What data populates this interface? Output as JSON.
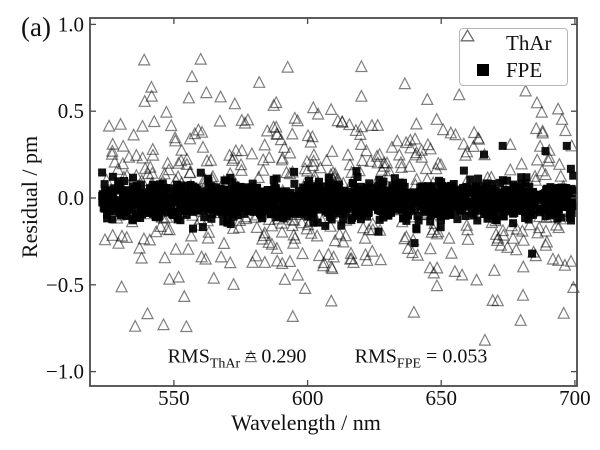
{
  "figure": {
    "panel_label": "(a)",
    "background": "#ffffff"
  },
  "axes": {
    "xlabel": "Wavelength / nm",
    "ylabel": "Residual / pm",
    "x_tick_labels": [
      "550",
      "600",
      "650",
      "700"
    ],
    "y_tick_labels": [
      "1.0",
      "0.5",
      "0.0",
      "−0.5",
      "−1.0"
    ],
    "frame_color": "#4a4a4a",
    "tick_color": "#4a4a4a",
    "text_color": "#111111"
  },
  "legend": {
    "items": [
      {
        "label": "ThAr",
        "marker": "triangle-open",
        "color": "#6b6b6b"
      },
      {
        "label": "FPE",
        "marker": "square-filled",
        "color": "#000000"
      }
    ]
  },
  "annotations": {
    "thar": {
      "prefix": "RMS",
      "sub": "ThAr",
      "eq": " = ",
      "value": "0.290"
    },
    "fpe": {
      "prefix": "RMS",
      "sub": "FPE",
      "eq": " = ",
      "value": "0.053"
    }
  },
  "chart_data": {
    "type": "scatter",
    "title": "",
    "xlabel": "Wavelength / nm",
    "ylabel": "Residual / pm",
    "xlim": [
      518.6,
      700.8
    ],
    "ylim": [
      -1.083,
      1.037
    ],
    "xticks": [
      550,
      600,
      650,
      700
    ],
    "yticks": [
      1.0,
      0.5,
      0.0,
      -0.5,
      -1.0
    ],
    "grid": false,
    "legend_position": "upper-right",
    "series": [
      {
        "name": "ThAr",
        "marker": "triangle-open",
        "color": "#000000",
        "marker_opacity": 0.5,
        "marker_size": 11,
        "rms": 0.29,
        "n": 560,
        "x_range": [
          524,
          699.5
        ],
        "y_mean": 0.0,
        "y_sigma": 0.29,
        "y_clip": 0.96,
        "seed": 1337
      },
      {
        "name": "FPE",
        "marker": "square-filled",
        "color": "#000000",
        "marker_opacity": 0.93,
        "marker_size": 8,
        "rms": 0.053,
        "n": 1500,
        "x_range": [
          523,
          699.5
        ],
        "y_mean": -0.015,
        "y_sigma": 0.052,
        "y_clip": 0.2,
        "seed": 4242,
        "outliers": [
          [
            666,
            0.25
          ],
          [
            673,
            0.3
          ],
          [
            689,
            0.27
          ],
          [
            697,
            0.3
          ],
          [
            684,
            -0.32
          ],
          [
            640,
            -0.26
          ]
        ]
      }
    ],
    "annotations": [
      {
        "text": "RMS_ThAr = 0.290",
        "x_nm": 573.6,
        "y_pm": -0.915
      },
      {
        "text": "RMS_FPE = 0.053",
        "x_nm": 642.0,
        "y_pm": -0.915
      }
    ]
  }
}
